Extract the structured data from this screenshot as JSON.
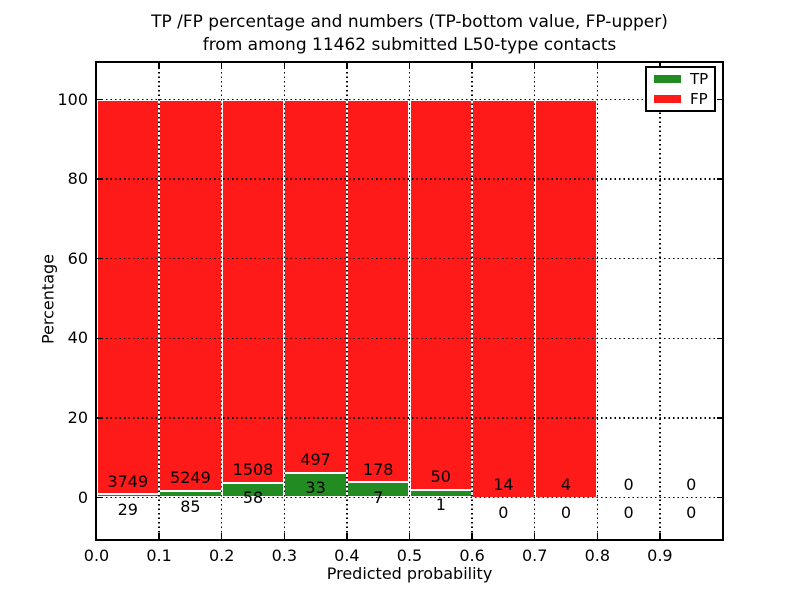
{
  "chart_data": {
    "type": "bar",
    "stacked": true,
    "title": "TP /FP percentage and numbers (TP-bottom value, FP-upper) from among 11462 submitted L50-type contacts",
    "title_line1": "TP /FP percentage and numbers (TP-bottom value, FP-upper)",
    "title_line2": "from among 11462 submitted L50-type contacts",
    "xlabel": "Predicted probability",
    "ylabel": "Percentage",
    "total_submitted_contacts": 11462,
    "xlim": [
      0.0,
      1.0
    ],
    "ylim": [
      -11,
      109.5
    ],
    "grid": "dotted",
    "legend_position": "upper-right",
    "x_tick_labels": [
      "0.0",
      "0.1",
      "0.2",
      "0.3",
      "0.4",
      "0.5",
      "0.6",
      "0.7",
      "0.8",
      "0.9"
    ],
    "y_tick_labels": [
      "0",
      "20",
      "40",
      "60",
      "80",
      "100"
    ],
    "bin_edges": [
      0.0,
      0.1,
      0.2,
      0.3,
      0.4,
      0.5,
      0.6,
      0.7,
      0.8,
      0.9,
      1.0
    ],
    "tp_counts": [
      29,
      85,
      58,
      33,
      7,
      1,
      0,
      0,
      0,
      0
    ],
    "fp_counts": [
      3749,
      5249,
      1508,
      497,
      178,
      50,
      14,
      4,
      0,
      0
    ],
    "bar_height_formula": "TP/(TP+FP)*100 stacked with FP/(TP+FP)*100; bins with 0 total have no bar",
    "colors": {
      "tp": "#228b22",
      "fp": "#ff1a1a"
    },
    "legend": [
      {
        "label": "TP",
        "key": "tp"
      },
      {
        "label": "FP",
        "key": "fp"
      }
    ]
  }
}
